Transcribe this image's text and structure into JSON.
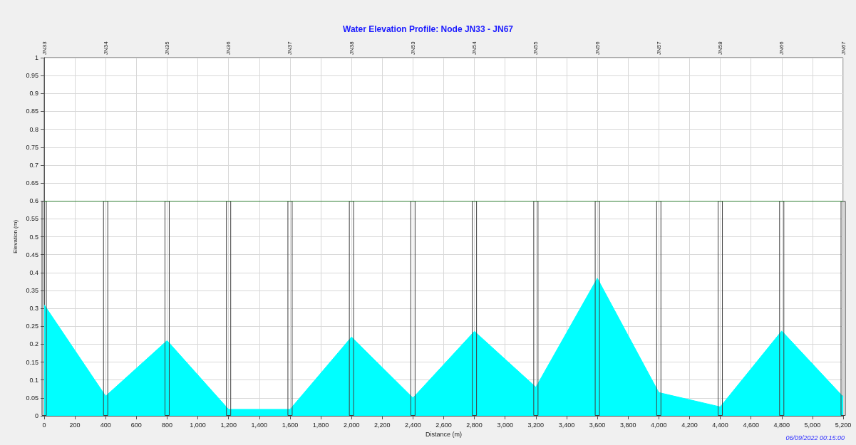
{
  "chart_data": {
    "type": "area",
    "title": "Water Elevation Profile: Node JN33 - JN67",
    "xlabel": "Distance (m)",
    "ylabel": "Elevation (m)",
    "x": [
      0,
      400,
      800,
      1200,
      1600,
      2000,
      2400,
      2800,
      3200,
      3600,
      4000,
      4400,
      4800,
      5200
    ],
    "series": [
      {
        "color": "#00ffff",
        "values": [
          0.31,
          0.055,
          0.21,
          0.018,
          0.018,
          0.22,
          0.05,
          0.236,
          0.08,
          0.384,
          0.065,
          0.025,
          0.237,
          0.053
        ]
      },
      {
        "type": "bar",
        "color": "#404040",
        "values": [
          0.6,
          0.6,
          0.6,
          0.6,
          0.6,
          0.6,
          0.6,
          0.6,
          0.6,
          0.6,
          0.6,
          0.6,
          0.6,
          0.6
        ]
      }
    ],
    "xlim": [
      0,
      5200
    ],
    "xticks": [
      0,
      200,
      400,
      600,
      800,
      {
        "value": 1000,
        "label": "1,000"
      },
      {
        "value": 1200,
        "label": "1,200"
      },
      {
        "value": 1400,
        "label": "1,400"
      },
      {
        "value": 1600,
        "label": "1,600"
      },
      {
        "value": 1800,
        "label": "1,800"
      },
      {
        "value": 2000,
        "label": "2,000"
      },
      {
        "value": 2200,
        "label": "2,200"
      },
      {
        "value": 2400,
        "label": "2,400"
      },
      {
        "value": 2600,
        "label": "2,600"
      },
      {
        "value": 2800,
        "label": "2,800"
      },
      {
        "value": 3000,
        "label": "3,000"
      },
      {
        "value": 3200,
        "label": "3,200"
      },
      {
        "value": 3400,
        "label": "3,400"
      },
      {
        "value": 3600,
        "label": "3,600"
      },
      {
        "value": 3800,
        "label": "3,800"
      },
      {
        "value": 4000,
        "label": "4,000"
      },
      {
        "value": 4200,
        "label": "4,200"
      },
      {
        "value": 4400,
        "label": "4,400"
      },
      {
        "value": 4600,
        "label": "4,600"
      },
      {
        "value": 4800,
        "label": "4,800"
      },
      {
        "value": 5000,
        "label": "5,000"
      },
      {
        "value": 5200,
        "label": "5,200"
      }
    ],
    "ylim": [
      0,
      1
    ],
    "yticks": [
      0,
      0.05,
      0.1,
      0.15,
      0.2,
      0.25,
      0.3,
      0.35,
      0.4,
      0.45,
      0.5,
      0.55,
      0.6,
      0.65,
      0.7,
      0.75,
      0.8,
      0.85,
      0.9,
      0.95,
      1
    ],
    "ref_lines": [
      {
        "axis": "y",
        "value": 0.6,
        "color": "#2e7d32"
      }
    ],
    "grid": true,
    "annotations": [
      "JN33",
      "JN34",
      "JN35",
      "JN36",
      "JN37",
      "JN38",
      "JN53",
      "JN54",
      "JN55",
      "JN56",
      "JN57",
      "JN58",
      "JN66",
      "JN67",
      "06/09/2022 00:15:00"
    ]
  }
}
